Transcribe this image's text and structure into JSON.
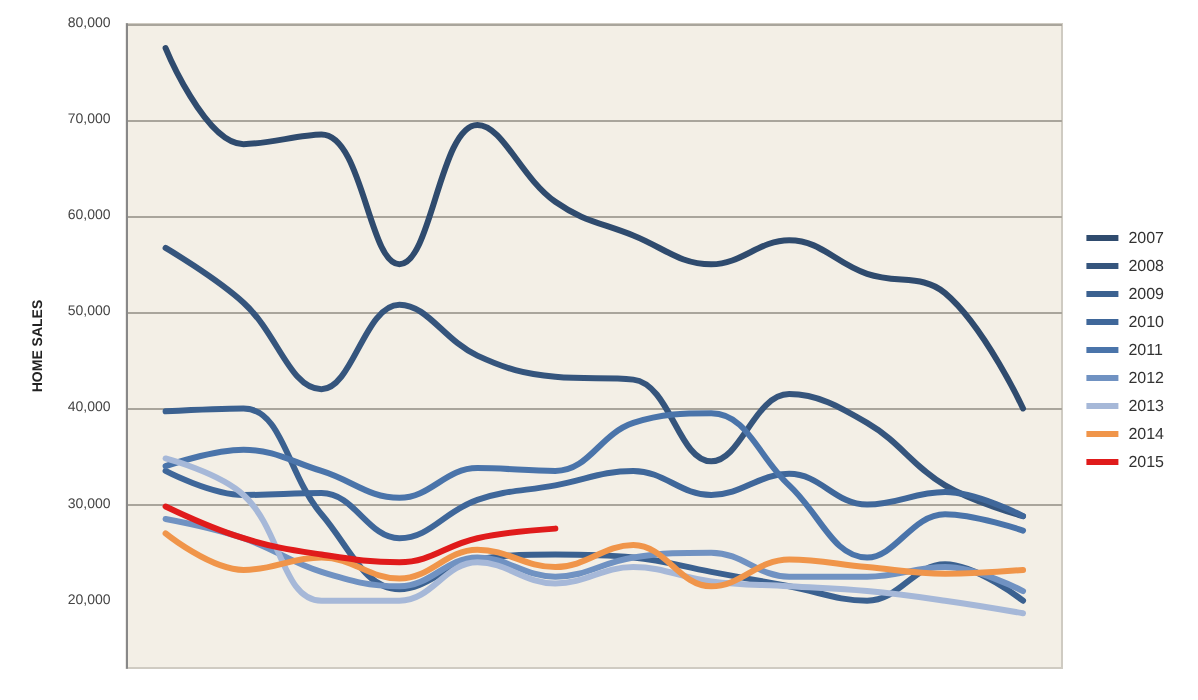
{
  "chart_data": {
    "type": "line",
    "ylabel": "HOME SALES",
    "categories": [
      null,
      null,
      null,
      null,
      null,
      null,
      null,
      null,
      null,
      null,
      null,
      null
    ],
    "ylim": [
      13000,
      80000
    ],
    "yticks": [
      {
        "value": 20000,
        "label": "20,000"
      },
      {
        "value": 30000,
        "label": "30,000"
      },
      {
        "value": 40000,
        "label": "40,000"
      },
      {
        "value": 50000,
        "label": "50,000"
      },
      {
        "value": 60000,
        "label": "60,000"
      },
      {
        "value": 70000,
        "label": "70,000"
      },
      {
        "value": 80000,
        "label": "80,000"
      }
    ],
    "grid": "y",
    "legend": "right",
    "marker": "none",
    "line_style": "solid",
    "series": [
      {
        "name": "2007",
        "color": "#2f4b6e",
        "values": [
          77500,
          67500,
          68500,
          55000,
          69500,
          61500,
          58000,
          55000,
          57500,
          54000,
          52000,
          40000
        ]
      },
      {
        "name": "2008",
        "color": "#35557d",
        "values": [
          56700,
          51000,
          42000,
          50800,
          45500,
          43300,
          43000,
          34500,
          41500,
          38500,
          32000,
          28800
        ]
      },
      {
        "name": "2009",
        "color": "#3b6190",
        "values": [
          39700,
          40000,
          29000,
          21200,
          24300,
          24800,
          24500,
          23000,
          21500,
          20000,
          23800,
          20000
        ]
      },
      {
        "name": "2010",
        "color": "#3f679a",
        "values": [
          33500,
          31000,
          31200,
          26500,
          30500,
          32000,
          33500,
          31000,
          33200,
          30000,
          31300,
          28800
        ]
      },
      {
        "name": "2011",
        "color": "#4a74aa",
        "values": [
          34000,
          35700,
          33500,
          30700,
          33800,
          33500,
          38500,
          39500,
          32000,
          24500,
          29000,
          27300
        ]
      },
      {
        "name": "2012",
        "color": "#7092c2",
        "values": [
          28500,
          26500,
          23000,
          21500,
          24500,
          22500,
          24500,
          25000,
          22500,
          22500,
          23500,
          21000
        ]
      },
      {
        "name": "2013",
        "color": "#a6b8d8",
        "values": [
          34800,
          31000,
          20000,
          20000,
          24000,
          21800,
          23500,
          22000,
          21500,
          21000,
          20000,
          18700
        ]
      },
      {
        "name": "2014",
        "color": "#f0954a",
        "values": [
          27000,
          23200,
          24500,
          22300,
          25300,
          23500,
          25800,
          21500,
          24300,
          23500,
          22800,
          23200
        ]
      },
      {
        "name": "2015",
        "color": "#e01b1b",
        "values": [
          29800,
          26500,
          24800,
          24000,
          26500,
          27500,
          null,
          null,
          null,
          null,
          null,
          null
        ]
      }
    ]
  }
}
